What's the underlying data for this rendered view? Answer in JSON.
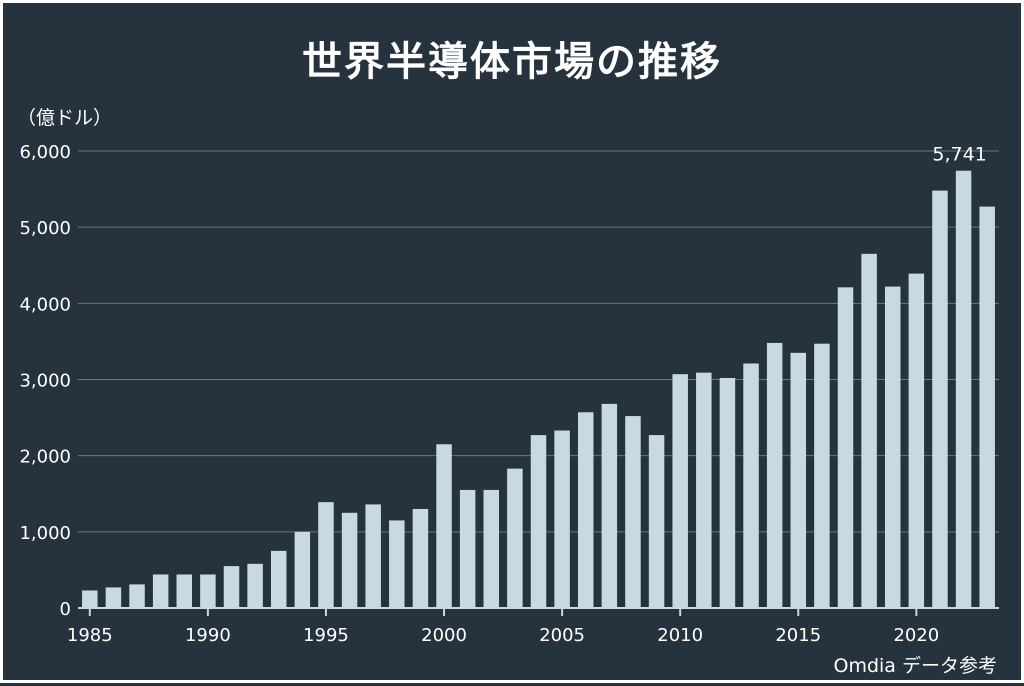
{
  "chart_data": {
    "type": "bar",
    "title": "世界半導体市場の推移",
    "ylabel": "（億ドル）",
    "xlabel": "",
    "source": "Omdia データ参考",
    "x": [
      1985,
      1986,
      1987,
      1988,
      1989,
      1990,
      1991,
      1992,
      1993,
      1994,
      1995,
      1996,
      1997,
      1998,
      1999,
      2000,
      2001,
      2002,
      2003,
      2004,
      2005,
      2006,
      2007,
      2008,
      2009,
      2010,
      2011,
      2012,
      2013,
      2014,
      2015,
      2016,
      2017,
      2018,
      2019,
      2020,
      2021,
      2022,
      2023
    ],
    "values": [
      230,
      270,
      310,
      440,
      440,
      440,
      550,
      580,
      750,
      1000,
      1390,
      1250,
      1360,
      1150,
      1300,
      2150,
      1550,
      1550,
      1830,
      2270,
      2330,
      2570,
      2680,
      2520,
      2270,
      3070,
      3090,
      3020,
      3210,
      3480,
      3350,
      3470,
      4210,
      4650,
      4220,
      4390,
      5480,
      5741,
      5270
    ],
    "ylim": [
      0,
      6000
    ],
    "yticks": [
      0,
      1000,
      2000,
      3000,
      4000,
      5000,
      6000
    ],
    "ytick_labels": [
      "0",
      "1,000",
      "2,000",
      "3,000",
      "4,000",
      "5,000",
      "6,000"
    ],
    "xticks": [
      1985,
      1990,
      1995,
      2000,
      2005,
      2010,
      2015,
      2020
    ],
    "xtick_labels": [
      "1985",
      "1990",
      "1995",
      "2000",
      "2005",
      "2010",
      "2015",
      "2020"
    ],
    "annotations": [
      {
        "x": 2022,
        "text": "5,741"
      }
    ],
    "grid": true,
    "colors": {
      "bar": "#c7d9e3",
      "grid": "#6b7680",
      "axis": "#c7d9e3",
      "background": "#26323d",
      "text": "#ffffff"
    }
  }
}
